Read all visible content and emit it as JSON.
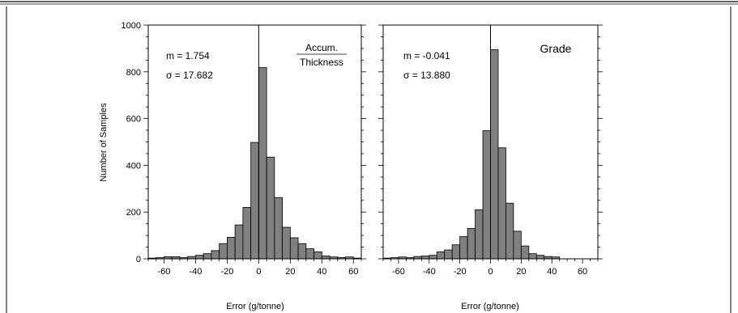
{
  "chart_data": [
    {
      "type": "bar",
      "panel_label": "Accum.",
      "panel_label_line2": "Thickness",
      "stat_mean": "m = 1.754",
      "stat_sigma": "σ = 17.682",
      "xlabel": "Error (g/tonne)",
      "ylabel": "Number of Samples",
      "xlim": [
        -70,
        65
      ],
      "ylim": [
        0,
        1000
      ],
      "bin_width": 5,
      "x_ticks": [
        -60,
        -40,
        -20,
        0,
        20,
        40,
        60
      ],
      "x_tick_labels": [
        "-60",
        "-40",
        "-20",
        "0",
        "20",
        "40",
        "60"
      ],
      "y_ticks": [
        0,
        200,
        400,
        600,
        800,
        1000
      ],
      "y_tick_labels": [
        "0",
        "200",
        "400",
        "600",
        "800",
        "1000"
      ],
      "zero_line": true,
      "bins": [
        {
          "x": -70,
          "value": 3
        },
        {
          "x": -65,
          "value": 5
        },
        {
          "x": -60,
          "value": 9
        },
        {
          "x": -55,
          "value": 9
        },
        {
          "x": -50,
          "value": 5
        },
        {
          "x": -45,
          "value": 10
        },
        {
          "x": -40,
          "value": 15
        },
        {
          "x": -35,
          "value": 22
        },
        {
          "x": -30,
          "value": 35
        },
        {
          "x": -25,
          "value": 65
        },
        {
          "x": -20,
          "value": 92
        },
        {
          "x": -15,
          "value": 145
        },
        {
          "x": -10,
          "value": 220
        },
        {
          "x": -5,
          "value": 498
        },
        {
          "x": 0,
          "value": 818
        },
        {
          "x": 5,
          "value": 435
        },
        {
          "x": 10,
          "value": 262
        },
        {
          "x": 15,
          "value": 135
        },
        {
          "x": 20,
          "value": 90
        },
        {
          "x": 25,
          "value": 65
        },
        {
          "x": 30,
          "value": 43
        },
        {
          "x": 35,
          "value": 30
        },
        {
          "x": 40,
          "value": 12
        },
        {
          "x": 45,
          "value": 8
        },
        {
          "x": 50,
          "value": 6
        },
        {
          "x": 55,
          "value": 8
        },
        {
          "x": 60,
          "value": 3
        }
      ]
    },
    {
      "type": "bar",
      "panel_label": "Grade",
      "panel_label_line2": "",
      "stat_mean": "m = -0.041",
      "stat_sigma": "σ = 13.880",
      "xlabel": "Error (g/tonne)",
      "ylabel": "",
      "xlim": [
        -70,
        70
      ],
      "ylim": [
        0,
        1000
      ],
      "bin_width": 5,
      "x_ticks": [
        -60,
        -40,
        -20,
        0,
        20,
        40,
        60
      ],
      "x_tick_labels": [
        "-60",
        "-40",
        "-20",
        "0",
        "20",
        "40",
        "60"
      ],
      "y_ticks": [
        0,
        200,
        400,
        600,
        800,
        1000
      ],
      "y_tick_labels": [],
      "zero_line": true,
      "bins": [
        {
          "x": -70,
          "value": 3
        },
        {
          "x": -65,
          "value": 5
        },
        {
          "x": -60,
          "value": 8
        },
        {
          "x": -55,
          "value": 5
        },
        {
          "x": -50,
          "value": 10
        },
        {
          "x": -45,
          "value": 12
        },
        {
          "x": -40,
          "value": 15
        },
        {
          "x": -35,
          "value": 30
        },
        {
          "x": -30,
          "value": 38
        },
        {
          "x": -25,
          "value": 60
        },
        {
          "x": -20,
          "value": 95
        },
        {
          "x": -15,
          "value": 130
        },
        {
          "x": -10,
          "value": 210
        },
        {
          "x": -5,
          "value": 548
        },
        {
          "x": 0,
          "value": 895
        },
        {
          "x": 5,
          "value": 475
        },
        {
          "x": 10,
          "value": 238
        },
        {
          "x": 15,
          "value": 118
        },
        {
          "x": 20,
          "value": 55
        },
        {
          "x": 25,
          "value": 22
        },
        {
          "x": 30,
          "value": 15
        },
        {
          "x": 35,
          "value": 10
        },
        {
          "x": 40,
          "value": 8
        }
      ]
    }
  ]
}
